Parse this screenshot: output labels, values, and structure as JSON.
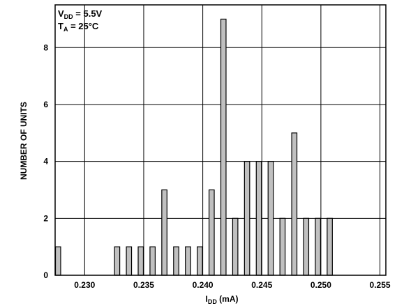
{
  "chart_data": {
    "type": "bar",
    "subtype": "histogram",
    "conditions": [
      {
        "main": "V",
        "sub": "DD",
        "rest": " = 5.5V"
      },
      {
        "main": "T",
        "sub": "A",
        "rest": " = 25°C"
      }
    ],
    "xlabel": {
      "main": "I",
      "sub": "DD",
      "rest": " (mA)"
    },
    "ylabel": "NUMBER OF UNITS",
    "xlim": [
      0.2275,
      0.2555
    ],
    "ylim": [
      0,
      9.5
    ],
    "xticks": [
      "0.230",
      "0.235",
      "0.240",
      "0.245",
      "0.250",
      "0.255"
    ],
    "xtick_values": [
      0.23,
      0.235,
      0.24,
      0.245,
      0.25,
      0.255
    ],
    "yticks": [
      "0",
      "2",
      "4",
      "6",
      "8"
    ],
    "ytick_values": [
      0,
      2,
      4,
      6,
      8
    ],
    "bin_width": 0.0005,
    "bins": [
      {
        "x": 0.2275,
        "count": 1
      },
      {
        "x": 0.2285,
        "count": 0
      },
      {
        "x": 0.2295,
        "count": 0
      },
      {
        "x": 0.2305,
        "count": 0
      },
      {
        "x": 0.2315,
        "count": 0
      },
      {
        "x": 0.2325,
        "count": 1
      },
      {
        "x": 0.2335,
        "count": 1
      },
      {
        "x": 0.2345,
        "count": 1
      },
      {
        "x": 0.2355,
        "count": 1
      },
      {
        "x": 0.2365,
        "count": 3
      },
      {
        "x": 0.2375,
        "count": 1
      },
      {
        "x": 0.2385,
        "count": 1
      },
      {
        "x": 0.2395,
        "count": 1
      },
      {
        "x": 0.2405,
        "count": 3
      },
      {
        "x": 0.2415,
        "count": 9
      },
      {
        "x": 0.2425,
        "count": 2
      },
      {
        "x": 0.2435,
        "count": 4
      },
      {
        "x": 0.2445,
        "count": 4
      },
      {
        "x": 0.2455,
        "count": 4
      },
      {
        "x": 0.2465,
        "count": 2
      },
      {
        "x": 0.2475,
        "count": 5
      },
      {
        "x": 0.2485,
        "count": 2
      },
      {
        "x": 0.2495,
        "count": 2
      },
      {
        "x": 0.2505,
        "count": 2
      }
    ],
    "bar_fill": "#c0c0c0",
    "bar_stroke": "#000000",
    "grid": true,
    "legend": "none"
  }
}
